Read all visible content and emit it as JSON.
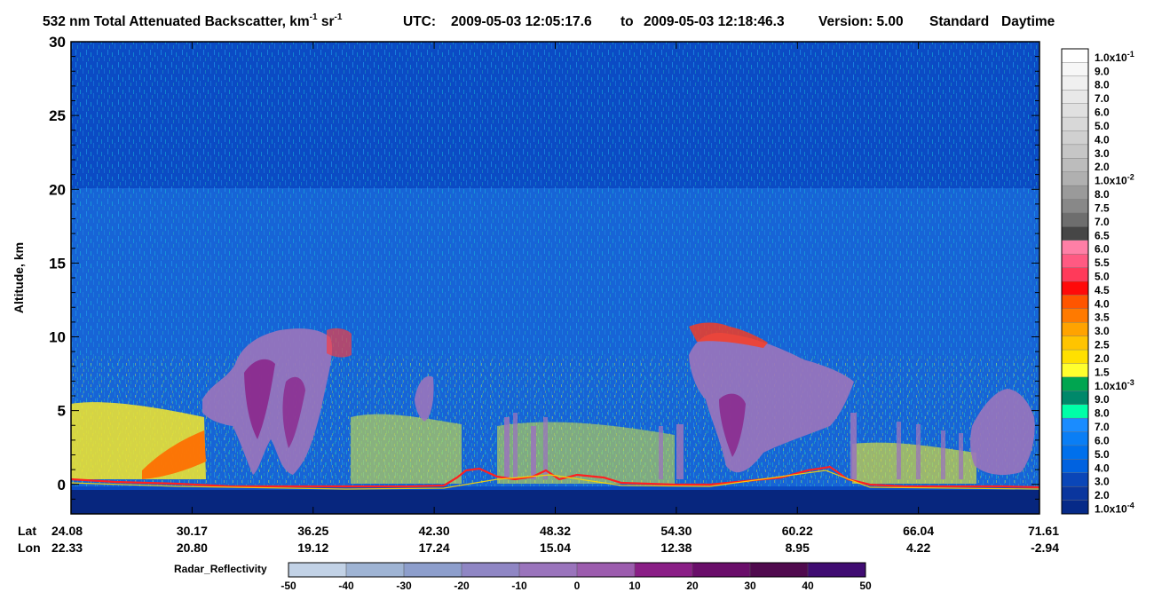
{
  "chart_data": {
    "type": "heatmap",
    "title": {
      "prefix": "532 nm Total Attenuated Backscatter, km",
      "sup1": "-1",
      "mid": " sr",
      "sup2": "-1",
      "utc_label": "UTC:",
      "utc_start": "2009-05-03 12:05:17.6",
      "to_label": "to",
      "utc_end": "2009-05-03 12:18:46.3",
      "version_label": "Version: 5.00",
      "product": "Standard",
      "daytime": "Daytime"
    },
    "ylabel": "Altitude, km",
    "ylim": [
      -2,
      30
    ],
    "yticks": [
      "30",
      "25",
      "20",
      "15",
      "10",
      "5",
      "0"
    ],
    "ytick_values": [
      30,
      25,
      20,
      15,
      10,
      5,
      0
    ],
    "x_rows": {
      "lat_label": "Lat",
      "lon_label": "Lon",
      "lat": [
        "24.08",
        "30.17",
        "36.25",
        "42.30",
        "48.32",
        "54.30",
        "60.22",
        "66.04",
        "71.61"
      ],
      "lon": [
        "22.33",
        "20.80",
        "19.12",
        "17.24",
        "15.04",
        "12.38",
        "8.95",
        "4.22",
        "-2.94"
      ]
    },
    "colorbar": {
      "labels": [
        "1.0x10",
        "9.0",
        "8.0",
        "7.0",
        "6.0",
        "5.0",
        "4.0",
        "3.0",
        "2.0",
        "1.0x10",
        "8.0",
        "7.5",
        "7.0",
        "6.5",
        "6.0",
        "5.5",
        "5.0",
        "4.5",
        "4.0",
        "3.5",
        "3.0",
        "2.5",
        "2.0",
        "1.5",
        "1.0x10",
        "9.0",
        "8.0",
        "7.0",
        "6.0",
        "5.0",
        "4.0",
        "3.0",
        "2.0",
        "1.0x10"
      ],
      "exponents": [
        "-1",
        "",
        "",
        "",
        "",
        "",
        "",
        "",
        "",
        "-2",
        "",
        "",
        "",
        "",
        "",
        "",
        "",
        "",
        "",
        "",
        "",
        "",
        "",
        "",
        "-3",
        "",
        "",
        "",
        "",
        "",
        "",
        "",
        "",
        "-4"
      ],
      "colors": [
        "#ffffff",
        "#f7f7f7",
        "#f0f0f0",
        "#e8e8e8",
        "#e0e0e0",
        "#d8d8d8",
        "#d0d0d0",
        "#c6c6c6",
        "#bcbcbc",
        "#b0b0b0",
        "#9a9a9a",
        "#888888",
        "#6e6e6e",
        "#464646",
        "#ff7fa6",
        "#ff5a82",
        "#ff3a5a",
        "#ff0a0a",
        "#ff5500",
        "#ff7a00",
        "#ffa300",
        "#ffc400",
        "#ffe000",
        "#ffff2e",
        "#00a550",
        "#00886a",
        "#00ffa8",
        "#1a8cff",
        "#0a7ef5",
        "#0070ec",
        "#0062e0",
        "#0a46b8",
        "#0a369e",
        "#062a88"
      ]
    },
    "radar": {
      "label": "Radar_Reflectivity",
      "ticks": [
        "-50",
        "-40",
        "-30",
        "-20",
        "-10",
        "0",
        "10",
        "20",
        "30",
        "40",
        "50"
      ],
      "colors": [
        "#c2d2e6",
        "#9fb4d4",
        "#8d9ecc",
        "#8f86c4",
        "#9a74bc",
        "#9c5cae",
        "#8a1e86",
        "#6a0e6a",
        "#500a4e",
        "#400c72",
        "#3a0a90"
      ]
    },
    "features": {
      "surface_km": 0,
      "stratosphere_top_km": 20.5,
      "clouds": [
        {
          "lat_start": 24.08,
          "lat_end": 30.6,
          "base_km": 1.0,
          "top_km": 5.5,
          "kind": "aerosol"
        },
        {
          "lat_start": 30.6,
          "lat_end": 39.8,
          "base_km": 1.0,
          "top_km": 10.7,
          "kind": "radar"
        },
        {
          "lat_start": 41.6,
          "lat_end": 43.0,
          "base_km": 3.8,
          "top_km": 7.2,
          "kind": "radar"
        },
        {
          "lat_start": 53.8,
          "lat_end": 63.7,
          "base_km": 1.0,
          "top_km": 11.0,
          "kind": "radar"
        },
        {
          "lat_start": 67.6,
          "lat_end": 71.4,
          "base_km": 1.2,
          "top_km": 6.5,
          "kind": "radar"
        }
      ]
    }
  }
}
